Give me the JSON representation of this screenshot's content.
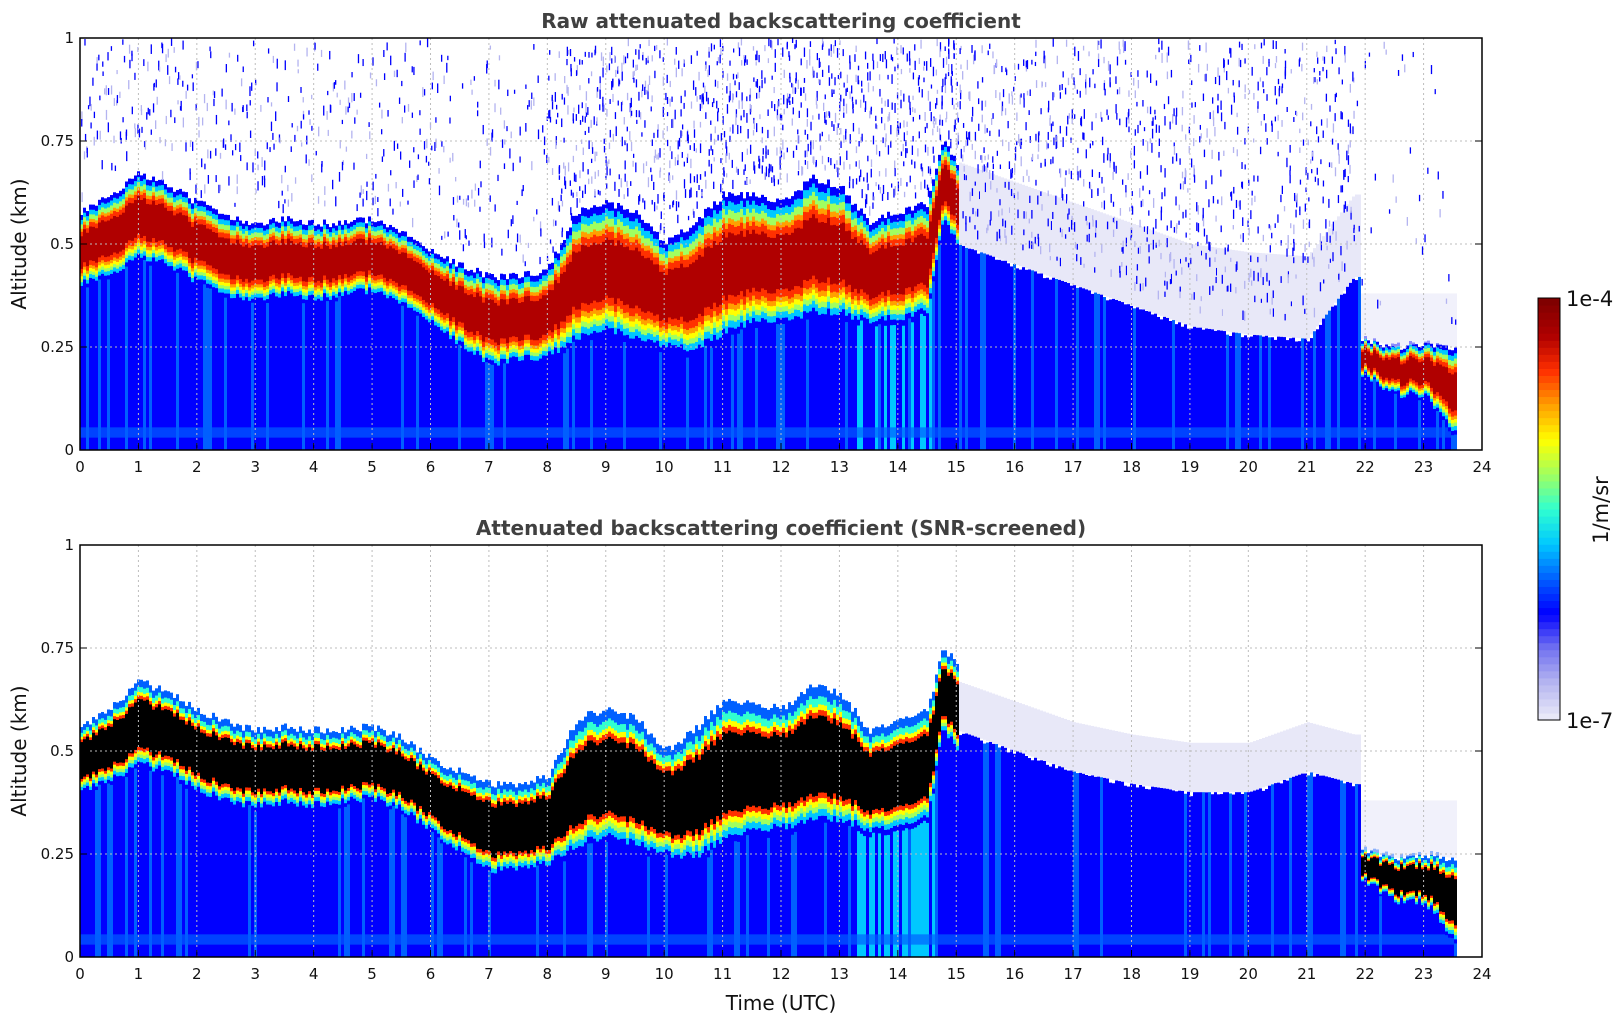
{
  "colors": {
    "jet": [
      "#e8e8f8",
      "#b4b4f0",
      "#7070f0",
      "#0000ff",
      "#0060ff",
      "#00c8ff",
      "#30ffd0",
      "#a0ff60",
      "#ffff00",
      "#ffa000",
      "#ff3000",
      "#b00000",
      "#800000"
    ],
    "saturated": "#000000",
    "axis": "#000000",
    "title": "#404040"
  },
  "chart_data": [
    {
      "type": "heatmap",
      "panel": "top",
      "title": "Raw attenuated backscattering coefficient",
      "xlabel": "",
      "ylabel": "Altitude (km)",
      "xlim": [
        0,
        24
      ],
      "ylim": [
        0,
        1
      ],
      "xticks": [
        0,
        1,
        2,
        3,
        4,
        5,
        6,
        7,
        8,
        9,
        10,
        11,
        12,
        13,
        14,
        15,
        16,
        17,
        18,
        19,
        20,
        21,
        22,
        23,
        24
      ],
      "yticks": [
        "0",
        "0.25",
        "0.5",
        "0.75",
        "1"
      ],
      "grid": true,
      "data_end_hour": 23.55,
      "screened": false,
      "layer_top_km": [
        [
          0,
          0.58
        ],
        [
          0.5,
          0.62
        ],
        [
          1,
          0.67
        ],
        [
          1.5,
          0.64
        ],
        [
          2,
          0.6
        ],
        [
          2.5,
          0.57
        ],
        [
          3,
          0.55
        ],
        [
          3.5,
          0.56
        ],
        [
          4,
          0.55
        ],
        [
          4.5,
          0.55
        ],
        [
          5,
          0.56
        ],
        [
          5.5,
          0.53
        ],
        [
          6,
          0.48
        ],
        [
          6.5,
          0.45
        ],
        [
          7,
          0.42
        ],
        [
          7.5,
          0.42
        ],
        [
          8,
          0.44
        ],
        [
          8.5,
          0.58
        ],
        [
          9,
          0.6
        ],
        [
          9.5,
          0.58
        ],
        [
          10,
          0.5
        ],
        [
          10.5,
          0.55
        ],
        [
          11,
          0.62
        ],
        [
          11.5,
          0.62
        ],
        [
          12,
          0.6
        ],
        [
          12.5,
          0.66
        ],
        [
          13,
          0.64
        ],
        [
          13.5,
          0.55
        ],
        [
          14,
          0.58
        ],
        [
          14.5,
          0.6
        ],
        [
          14.75,
          0.75
        ],
        [
          15,
          0.7
        ]
      ],
      "layer_bottom_km": [
        [
          0,
          0.4
        ],
        [
          0.5,
          0.42
        ],
        [
          1,
          0.46
        ],
        [
          1.5,
          0.44
        ],
        [
          2,
          0.4
        ],
        [
          2.5,
          0.37
        ],
        [
          3,
          0.36
        ],
        [
          3.5,
          0.37
        ],
        [
          4,
          0.36
        ],
        [
          4.5,
          0.37
        ],
        [
          5,
          0.38
        ],
        [
          5.5,
          0.35
        ],
        [
          6,
          0.3
        ],
        [
          6.5,
          0.25
        ],
        [
          7,
          0.2
        ],
        [
          7.5,
          0.21
        ],
        [
          8,
          0.22
        ],
        [
          8.5,
          0.26
        ],
        [
          9,
          0.28
        ],
        [
          9.5,
          0.26
        ],
        [
          10,
          0.24
        ],
        [
          10.5,
          0.23
        ],
        [
          11,
          0.27
        ],
        [
          11.5,
          0.3
        ],
        [
          12,
          0.3
        ],
        [
          12.5,
          0.32
        ],
        [
          13,
          0.32
        ],
        [
          13.5,
          0.3
        ],
        [
          14,
          0.31
        ],
        [
          14.5,
          0.33
        ],
        [
          14.75,
          0.55
        ],
        [
          15,
          0.5
        ]
      ],
      "late_layer_top_km": [
        [
          22,
          0.27
        ],
        [
          22.5,
          0.25
        ],
        [
          23,
          0.26
        ],
        [
          23.5,
          0.25
        ]
      ],
      "late_layer_bottom_km": [
        [
          22,
          0.18
        ],
        [
          22.5,
          0.13
        ],
        [
          23,
          0.13
        ],
        [
          23.5,
          0.04
        ]
      ],
      "boundary_layer_top_km": [
        [
          15,
          0.5
        ],
        [
          16,
          0.45
        ],
        [
          17,
          0.4
        ],
        [
          18,
          0.35
        ],
        [
          19,
          0.3
        ],
        [
          20,
          0.28
        ],
        [
          21,
          0.27
        ],
        [
          21.8,
          0.42
        ]
      ]
    },
    {
      "type": "heatmap",
      "panel": "bottom",
      "title": "Attenuated backscattering coefficient (SNR-screened)",
      "xlabel": "Time (UTC)",
      "ylabel": "Altitude (km)",
      "xlim": [
        0,
        24
      ],
      "ylim": [
        0,
        1
      ],
      "xticks": [
        0,
        1,
        2,
        3,
        4,
        5,
        6,
        7,
        8,
        9,
        10,
        11,
        12,
        13,
        14,
        15,
        16,
        17,
        18,
        19,
        20,
        21,
        22,
        23,
        24
      ],
      "yticks": [
        "0",
        "0.25",
        "0.5",
        "0.75",
        "1"
      ],
      "grid": true,
      "data_end_hour": 23.55,
      "screened": true,
      "layer_top_km": [
        [
          0,
          0.56
        ],
        [
          0.5,
          0.6
        ],
        [
          1,
          0.67
        ],
        [
          1.5,
          0.64
        ],
        [
          2,
          0.6
        ],
        [
          2.5,
          0.57
        ],
        [
          3,
          0.55
        ],
        [
          3.5,
          0.56
        ],
        [
          4,
          0.55
        ],
        [
          4.5,
          0.55
        ],
        [
          5,
          0.56
        ],
        [
          5.5,
          0.53
        ],
        [
          6,
          0.48
        ],
        [
          6.5,
          0.45
        ],
        [
          7,
          0.42
        ],
        [
          7.5,
          0.42
        ],
        [
          8,
          0.44
        ],
        [
          8.5,
          0.58
        ],
        [
          9,
          0.6
        ],
        [
          9.5,
          0.58
        ],
        [
          10,
          0.5
        ],
        [
          10.5,
          0.55
        ],
        [
          11,
          0.62
        ],
        [
          11.5,
          0.62
        ],
        [
          12,
          0.6
        ],
        [
          12.5,
          0.66
        ],
        [
          13,
          0.64
        ],
        [
          13.5,
          0.55
        ],
        [
          14,
          0.58
        ],
        [
          14.5,
          0.6
        ],
        [
          14.75,
          0.75
        ],
        [
          15,
          0.72
        ]
      ],
      "layer_bottom_km": [
        [
          0,
          0.4
        ],
        [
          0.5,
          0.42
        ],
        [
          1,
          0.46
        ],
        [
          1.5,
          0.44
        ],
        [
          2,
          0.4
        ],
        [
          2.5,
          0.37
        ],
        [
          3,
          0.36
        ],
        [
          3.5,
          0.37
        ],
        [
          4,
          0.36
        ],
        [
          4.5,
          0.37
        ],
        [
          5,
          0.38
        ],
        [
          5.5,
          0.35
        ],
        [
          6,
          0.3
        ],
        [
          6.5,
          0.25
        ],
        [
          7,
          0.2
        ],
        [
          7.5,
          0.21
        ],
        [
          8,
          0.22
        ],
        [
          8.5,
          0.26
        ],
        [
          9,
          0.28
        ],
        [
          9.5,
          0.26
        ],
        [
          10,
          0.24
        ],
        [
          10.5,
          0.23
        ],
        [
          11,
          0.27
        ],
        [
          11.5,
          0.3
        ],
        [
          12,
          0.3
        ],
        [
          12.5,
          0.32
        ],
        [
          13,
          0.32
        ],
        [
          13.5,
          0.3
        ],
        [
          14,
          0.31
        ],
        [
          14.5,
          0.33
        ],
        [
          14.75,
          0.55
        ],
        [
          15,
          0.5
        ]
      ],
      "late_layer_top_km": [
        [
          22,
          0.26
        ],
        [
          22.5,
          0.24
        ],
        [
          23,
          0.25
        ],
        [
          23.5,
          0.24
        ]
      ],
      "late_layer_bottom_km": [
        [
          22,
          0.18
        ],
        [
          22.5,
          0.13
        ],
        [
          23,
          0.13
        ],
        [
          23.5,
          0.04
        ]
      ],
      "boundary_layer_top_km": [
        [
          15,
          0.55
        ],
        [
          16,
          0.5
        ],
        [
          17,
          0.45
        ],
        [
          18,
          0.42
        ],
        [
          19,
          0.4
        ],
        [
          20,
          0.4
        ],
        [
          21,
          0.45
        ],
        [
          21.8,
          0.42
        ]
      ]
    }
  ],
  "colorbar": {
    "max_label": "1e-4",
    "min_label": "1e-7",
    "label": "1/m/sr"
  }
}
